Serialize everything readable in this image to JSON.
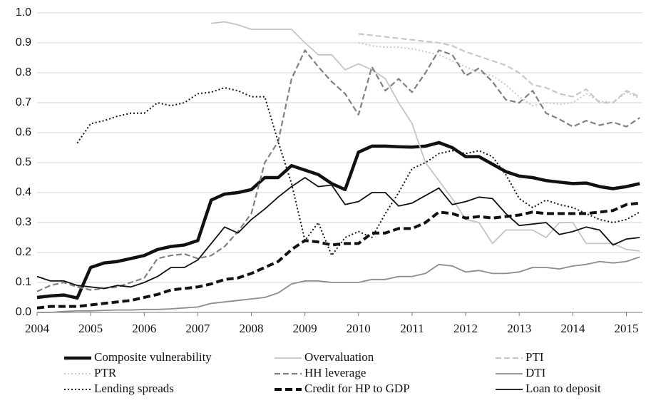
{
  "chart_data": {
    "type": "line",
    "x": [
      2004,
      2004.25,
      2004.5,
      2004.75,
      2005,
      2005.25,
      2005.5,
      2005.75,
      2006,
      2006.25,
      2006.5,
      2006.75,
      2007,
      2007.25,
      2007.5,
      2007.75,
      2008,
      2008.25,
      2008.5,
      2008.75,
      2009,
      2009.25,
      2009.5,
      2009.75,
      2010,
      2010.25,
      2010.5,
      2010.75,
      2011,
      2011.25,
      2011.5,
      2011.75,
      2012,
      2012.25,
      2012.5,
      2012.75,
      2013,
      2013.25,
      2013.5,
      2013.75,
      2014,
      2014.25,
      2014.5,
      2014.75,
      2015,
      2015.25
    ],
    "xlim": [
      2004,
      2015.3
    ],
    "xticks": [
      2004,
      2005,
      2006,
      2007,
      2008,
      2009,
      2010,
      2011,
      2012,
      2013,
      2014,
      2015
    ],
    "ylim": [
      0,
      1
    ],
    "yticks": [
      {
        "value": 0,
        "label": "0.0"
      },
      0.1,
      0.2,
      0.3,
      0.4,
      0.5,
      0.6,
      0.7,
      0.8,
      0.9,
      {
        "value": 1,
        "label": "1.0"
      }
    ],
    "grid": true,
    "legend": "bottom",
    "series": [
      {
        "name": "Composite vulnerability",
        "color": "#111111",
        "style": "thick",
        "values": [
          0.05,
          0.055,
          0.058,
          0.048,
          0.15,
          0.165,
          0.17,
          0.18,
          0.19,
          0.21,
          0.22,
          0.225,
          0.24,
          0.375,
          0.395,
          0.4,
          0.41,
          0.45,
          0.45,
          0.49,
          0.475,
          0.46,
          0.43,
          0.41,
          0.535,
          0.555,
          0.555,
          0.553,
          0.552,
          0.555,
          0.567,
          0.55,
          0.52,
          0.52,
          0.495,
          0.47,
          0.455,
          0.45,
          0.44,
          0.435,
          0.43,
          0.432,
          0.42,
          0.413,
          0.42,
          0.43
        ]
      },
      {
        "name": "Overvaluation",
        "color": "#c4c4c4",
        "style": "solid",
        "values": [
          null,
          null,
          null,
          null,
          null,
          null,
          null,
          null,
          null,
          null,
          null,
          null,
          null,
          0.965,
          0.97,
          0.96,
          0.945,
          0.945,
          0.945,
          0.945,
          0.9,
          0.86,
          0.86,
          0.81,
          0.83,
          0.81,
          0.78,
          0.7,
          0.63,
          0.5,
          0.44,
          0.38,
          0.31,
          0.3,
          0.23,
          0.275,
          0.275,
          0.275,
          0.25,
          0.3,
          0.3,
          0.23,
          0.23,
          0.23,
          0.21,
          0.205
        ]
      },
      {
        "name": "PTI",
        "color": "#c8c8c8",
        "style": "dashed",
        "values": [
          null,
          null,
          null,
          null,
          null,
          null,
          null,
          null,
          null,
          null,
          null,
          null,
          null,
          null,
          null,
          null,
          null,
          null,
          null,
          null,
          null,
          null,
          null,
          null,
          0.93,
          0.925,
          0.92,
          0.915,
          0.91,
          0.905,
          0.9,
          0.89,
          0.87,
          0.855,
          0.84,
          0.825,
          0.8,
          0.76,
          0.75,
          0.73,
          0.72,
          0.745,
          0.7,
          0.7,
          0.74,
          0.72
        ]
      },
      {
        "name": "PTR",
        "color": "#c8c8c8",
        "style": "dotted",
        "values": [
          null,
          null,
          null,
          null,
          null,
          null,
          null,
          null,
          null,
          null,
          null,
          null,
          null,
          null,
          null,
          null,
          null,
          null,
          null,
          null,
          null,
          null,
          null,
          null,
          0.9,
          0.89,
          0.885,
          0.885,
          0.88,
          0.87,
          0.86,
          0.84,
          0.82,
          0.8,
          0.79,
          0.76,
          0.72,
          0.69,
          0.7,
          0.695,
          0.7,
          0.73,
          0.705,
          0.7,
          0.735,
          0.715
        ]
      },
      {
        "name": "HH leverage",
        "color": "#808080",
        "style": "dashed",
        "values": [
          0.07,
          0.09,
          0.1,
          0.085,
          0.075,
          0.08,
          0.085,
          0.1,
          0.115,
          0.18,
          0.19,
          0.195,
          0.18,
          0.19,
          0.22,
          0.27,
          0.33,
          0.5,
          0.57,
          0.78,
          0.875,
          0.82,
          0.77,
          0.73,
          0.66,
          0.82,
          0.74,
          0.78,
          0.735,
          0.8,
          0.875,
          0.86,
          0.79,
          0.815,
          0.77,
          0.71,
          0.7,
          0.74,
          0.665,
          0.645,
          0.62,
          0.64,
          0.625,
          0.635,
          0.62,
          0.65
        ]
      },
      {
        "name": "DTI",
        "color": "#8c8c8c",
        "style": "solid",
        "values": [
          0,
          0,
          0.003,
          0.005,
          0.005,
          0.007,
          0.008,
          0.008,
          0.01,
          0.01,
          0.012,
          0.015,
          0.018,
          0.03,
          0.035,
          0.04,
          0.045,
          0.05,
          0.065,
          0.095,
          0.105,
          0.105,
          0.1,
          0.1,
          0.1,
          0.11,
          0.11,
          0.12,
          0.12,
          0.13,
          0.16,
          0.155,
          0.135,
          0.14,
          0.13,
          0.13,
          0.135,
          0.15,
          0.15,
          0.145,
          0.155,
          0.16,
          0.17,
          0.165,
          0.17,
          0.185
        ]
      },
      {
        "name": "Lending spreads",
        "color": "#111111",
        "style": "dotted",
        "values": [
          null,
          null,
          null,
          0.565,
          0.63,
          0.64,
          0.655,
          0.665,
          0.665,
          0.7,
          0.69,
          0.7,
          0.73,
          0.735,
          0.75,
          0.74,
          0.72,
          0.72,
          0.57,
          0.43,
          0.24,
          0.3,
          0.19,
          0.25,
          0.27,
          0.25,
          0.33,
          0.4,
          0.48,
          0.5,
          0.53,
          0.54,
          0.53,
          0.54,
          0.52,
          0.46,
          0.38,
          0.35,
          0.375,
          0.36,
          0.35,
          0.33,
          0.31,
          0.3,
          0.31,
          0.335
        ]
      },
      {
        "name": "Credit for HP to GDP",
        "color": "#111111",
        "style": "thick-dashed",
        "values": [
          0.015,
          0.02,
          0.02,
          0.02,
          0.025,
          0.03,
          0.035,
          0.04,
          0.05,
          0.06,
          0.075,
          0.08,
          0.085,
          0.095,
          0.11,
          0.115,
          0.13,
          0.15,
          0.17,
          0.21,
          0.24,
          0.235,
          0.225,
          0.23,
          0.23,
          0.265,
          0.265,
          0.28,
          0.28,
          0.3,
          0.335,
          0.33,
          0.315,
          0.32,
          0.315,
          0.32,
          0.325,
          0.335,
          0.33,
          0.33,
          0.33,
          0.33,
          0.335,
          0.34,
          0.36,
          0.365
        ]
      },
      {
        "name": "Loan to deposit",
        "color": "#111111",
        "style": "solid",
        "values": [
          0.12,
          0.105,
          0.105,
          0.09,
          0.085,
          0.08,
          0.09,
          0.085,
          0.1,
          0.12,
          0.15,
          0.15,
          0.175,
          0.23,
          0.285,
          0.265,
          0.31,
          0.345,
          0.385,
          0.42,
          0.45,
          0.42,
          0.425,
          0.36,
          0.37,
          0.4,
          0.4,
          0.355,
          0.365,
          0.39,
          0.415,
          0.36,
          0.37,
          0.385,
          0.38,
          0.33,
          0.29,
          0.295,
          0.3,
          0.26,
          0.27,
          0.285,
          0.275,
          0.225,
          0.245,
          0.25
        ]
      }
    ]
  }
}
